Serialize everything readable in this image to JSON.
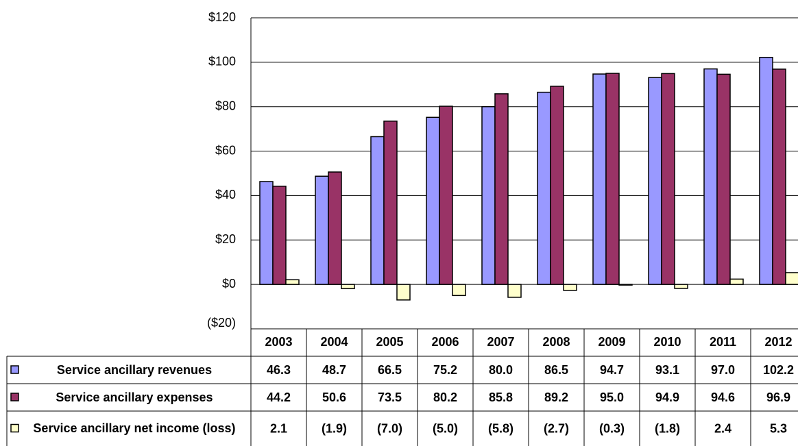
{
  "chart_data": {
    "type": "bar",
    "categories": [
      "2003",
      "2004",
      "2005",
      "2006",
      "2007",
      "2008",
      "2009",
      "2010",
      "2011",
      "2012"
    ],
    "series": [
      {
        "name": "Service ancillary revenues",
        "color": "#9999ff",
        "values": [
          46.3,
          48.7,
          66.5,
          75.2,
          80.0,
          86.5,
          94.7,
          93.1,
          97.0,
          102.2
        ],
        "value_labels": [
          "46.3",
          "48.7",
          "66.5",
          "75.2",
          "80.0",
          "86.5",
          "94.7",
          "93.1",
          "97.0",
          "102.2"
        ]
      },
      {
        "name": "Service ancillary expenses",
        "color": "#993366",
        "values": [
          44.2,
          50.6,
          73.5,
          80.2,
          85.8,
          89.2,
          95.0,
          94.9,
          94.6,
          96.9
        ],
        "value_labels": [
          "44.2",
          "50.6",
          "73.5",
          "80.2",
          "85.8",
          "89.2",
          "95.0",
          "94.9",
          "94.6",
          "96.9"
        ]
      },
      {
        "name": "Service ancillary net income (loss)",
        "color": "#ffffcc",
        "values": [
          2.1,
          -1.9,
          -7.0,
          -5.0,
          -5.8,
          -2.7,
          -0.3,
          -1.8,
          2.4,
          5.3
        ],
        "value_labels": [
          "2.1",
          "(1.9)",
          "(7.0)",
          "(5.0)",
          "(5.8)",
          "(2.7)",
          "(0.3)",
          "(1.8)",
          "2.4",
          "5.3"
        ]
      }
    ],
    "ylim": [
      -20,
      120
    ],
    "yticks": [
      {
        "value": -20,
        "label": "($20)"
      },
      {
        "value": 0,
        "label": "$0"
      },
      {
        "value": 20,
        "label": "$20"
      },
      {
        "value": 40,
        "label": "$40"
      },
      {
        "value": 60,
        "label": "$60"
      },
      {
        "value": 80,
        "label": "$80"
      },
      {
        "value": 100,
        "label": "$100"
      },
      {
        "value": 120,
        "label": "$120"
      }
    ],
    "grid": true
  }
}
